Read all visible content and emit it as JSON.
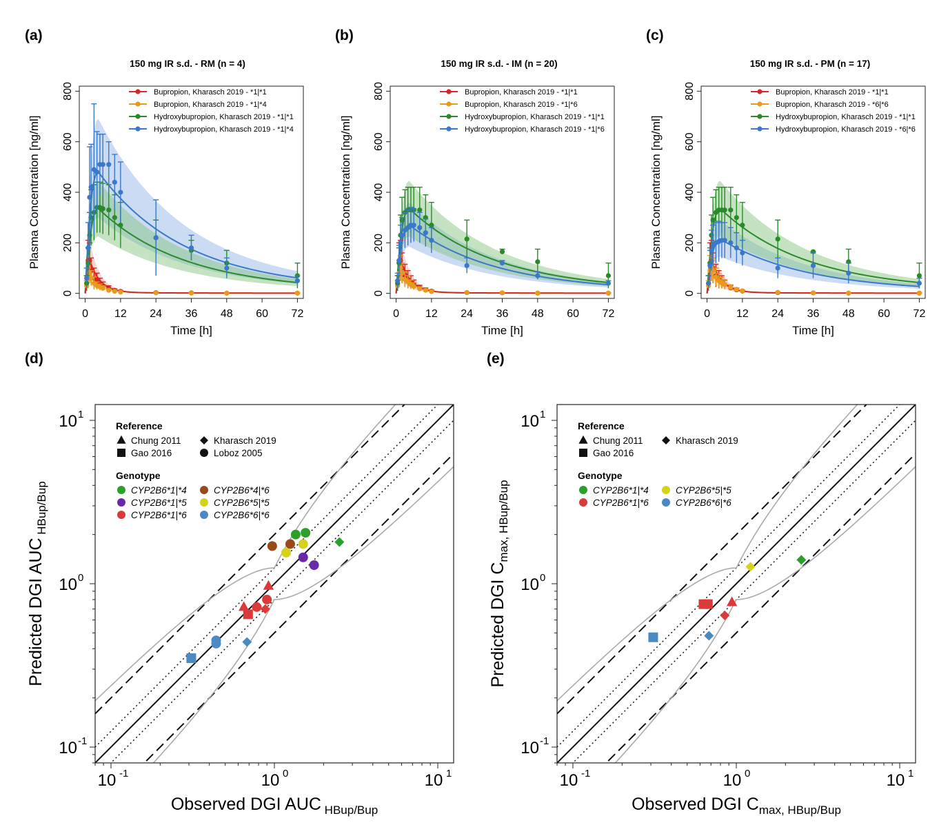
{
  "colors": {
    "bup_ref": "#d62728",
    "bup_var": "#e89a1c",
    "hbup_ref": "#2a8a2a",
    "hbup_var": "#3a78c9",
    "band_green": "#7fc27a",
    "band_blue": "#8fb0e6",
    "g14": "#2aa02a",
    "g15": "#6a2aa8",
    "g16": "#dc3a3a",
    "g46": "#9a4a1a",
    "g55": "#d4d21a",
    "g66": "#4a8ac4"
  },
  "chart_data": [
    {
      "id": "a",
      "type": "line",
      "panel_label": "(a)",
      "title": "150 mg IR s.d. - RM (n = 4)",
      "xlabel": "Time [h]",
      "ylabel": "Plasma Concentration [ng/ml]",
      "xlim": [
        -2,
        74
      ],
      "ylim": [
        -20,
        820
      ],
      "xticks": [
        0,
        12,
        24,
        36,
        48,
        60,
        72
      ],
      "yticks": [
        0,
        200,
        400,
        600,
        800
      ],
      "legend": [
        "Bupropion, Kharasch 2019 - *1|*1",
        "Bupropion, Kharasch 2019 - *1|*4",
        "Hydroxybupropion, Kharasch 2019 - *1|*1",
        "Hydroxybupropion, Kharasch 2019 - *1|*4"
      ],
      "hbup_ref": {
        "peak": 335,
        "band_hi": 445,
        "band_lo": 225
      },
      "hbup_var": {
        "peak": 480,
        "band_hi": 690,
        "band_lo": 300
      },
      "obs_hbup_ref": {
        "t": [
          0.5,
          1,
          1.5,
          2,
          3,
          4,
          5,
          6,
          8,
          10,
          12,
          24,
          36,
          48,
          72
        ],
        "y": [
          40,
          120,
          230,
          300,
          320,
          340,
          340,
          335,
          330,
          300,
          270,
          220,
          170,
          120,
          70
        ],
        "sd": [
          30,
          60,
          90,
          110,
          110,
          100,
          100,
          100,
          100,
          90,
          90,
          70,
          40,
          50,
          50
        ]
      },
      "obs_hbup_var": {
        "t": [
          0.5,
          1,
          1.5,
          2,
          3,
          4,
          5,
          6,
          8,
          10,
          12,
          24,
          36,
          48,
          72
        ],
        "y": [
          60,
          180,
          380,
          420,
          490,
          480,
          510,
          510,
          510,
          440,
          400,
          220,
          180,
          100,
          50
        ],
        "sd": [
          40,
          100,
          200,
          170,
          260,
          160,
          120,
          120,
          90,
          110,
          120,
          150,
          50,
          40,
          20
        ]
      },
      "obs_bup_ref": {
        "t": [
          0.5,
          1,
          1.5,
          2,
          3,
          4,
          5,
          6,
          8,
          10,
          12,
          24,
          36,
          48,
          72
        ],
        "y": [
          40,
          130,
          130,
          90,
          60,
          50,
          40,
          30,
          20,
          12,
          8,
          3,
          2,
          1,
          1
        ],
        "sd": [
          30,
          80,
          70,
          50,
          40,
          30,
          20,
          15,
          10,
          6,
          4,
          2,
          1,
          1,
          1
        ]
      },
      "obs_bup_var": {
        "t": [
          0.5,
          1,
          1.5,
          2,
          3,
          4,
          5,
          6,
          8,
          10,
          12,
          24,
          36,
          48,
          72
        ],
        "y": [
          30,
          60,
          80,
          60,
          40,
          30,
          25,
          20,
          12,
          8,
          5,
          2,
          1,
          1,
          1
        ],
        "sd": [
          20,
          40,
          40,
          30,
          25,
          15,
          12,
          10,
          6,
          4,
          3,
          1,
          1,
          1,
          1
        ]
      }
    },
    {
      "id": "b",
      "type": "line",
      "panel_label": "(b)",
      "title": "150 mg IR s.d. - IM (n = 20)",
      "xlabel": "Time [h]",
      "ylabel": "Plasma Concentration [ng/ml]",
      "xlim": [
        -2,
        74
      ],
      "ylim": [
        -20,
        820
      ],
      "xticks": [
        0,
        12,
        24,
        36,
        48,
        60,
        72
      ],
      "yticks": [
        0,
        200,
        400,
        600,
        800
      ],
      "legend": [
        "Bupropion, Kharasch 2019 - *1|*1",
        "Bupropion, Kharasch 2019 - *1|*6",
        "Hydroxybupropion, Kharasch 2019 - *1|*1",
        "Hydroxybupropion, Kharasch 2019 - *1|*6"
      ],
      "hbup_ref": {
        "peak": 335,
        "band_hi": 445,
        "band_lo": 225
      },
      "hbup_var": {
        "peak": 270,
        "band_hi": 360,
        "band_lo": 185
      },
      "obs_hbup_ref": {
        "t": [
          0.5,
          1,
          1.5,
          2,
          3,
          4,
          5,
          6,
          8,
          10,
          12,
          24,
          36,
          48,
          72
        ],
        "y": [
          40,
          120,
          230,
          290,
          320,
          330,
          330,
          330,
          330,
          300,
          270,
          215,
          165,
          125,
          70
        ],
        "sd": [
          30,
          60,
          80,
          90,
          90,
          90,
          90,
          90,
          90,
          90,
          90,
          75,
          10,
          50,
          50
        ]
      },
      "obs_hbup_var": {
        "t": [
          0.5,
          1,
          1.5,
          2,
          3,
          4,
          5,
          6,
          8,
          10,
          12,
          24,
          36,
          48,
          72
        ],
        "y": [
          50,
          130,
          200,
          230,
          250,
          260,
          270,
          270,
          260,
          240,
          210,
          110,
          120,
          70,
          40
        ],
        "sd": [
          30,
          60,
          70,
          70,
          70,
          70,
          70,
          65,
          60,
          55,
          50,
          30,
          10,
          15,
          10
        ]
      },
      "obs_bup_ref": {
        "t": [
          0.5,
          1,
          1.5,
          2,
          3,
          4,
          5,
          6,
          8,
          10,
          12,
          24,
          36,
          48,
          72
        ],
        "y": [
          40,
          120,
          130,
          100,
          70,
          55,
          45,
          35,
          22,
          14,
          9,
          3,
          2,
          1,
          1
        ],
        "sd": [
          30,
          80,
          80,
          60,
          45,
          35,
          25,
          18,
          10,
          7,
          4,
          2,
          1,
          1,
          1
        ]
      },
      "obs_bup_var": {
        "t": [
          0.5,
          1,
          1.5,
          2,
          3,
          4,
          5,
          6,
          8,
          10,
          12,
          24,
          36,
          48,
          72
        ],
        "y": [
          30,
          80,
          100,
          80,
          55,
          45,
          35,
          28,
          18,
          12,
          7,
          3,
          2,
          1,
          1
        ],
        "sd": [
          20,
          50,
          50,
          40,
          30,
          25,
          18,
          14,
          8,
          5,
          3,
          1,
          1,
          1,
          1
        ]
      }
    },
    {
      "id": "c",
      "type": "line",
      "panel_label": "(c)",
      "title": "150 mg IR s.d. - PM (n = 17)",
      "xlabel": "Time [h]",
      "ylabel": "Plasma Concentration [ng/ml]",
      "xlim": [
        -2,
        74
      ],
      "ylim": [
        -20,
        820
      ],
      "xticks": [
        0,
        12,
        24,
        36,
        48,
        60,
        72
      ],
      "yticks": [
        0,
        200,
        400,
        600,
        800
      ],
      "legend": [
        "Bupropion, Kharasch 2019 - *1|*1",
        "Bupropion, Kharasch 2019 - *6|*6",
        "Hydroxybupropion, Kharasch 2019 - *1|*1",
        "Hydroxybupropion, Kharasch 2019 - *6|*6"
      ],
      "hbup_ref": {
        "peak": 335,
        "band_hi": 445,
        "band_lo": 225
      },
      "hbup_var": {
        "peak": 215,
        "band_hi": 290,
        "band_lo": 145
      },
      "obs_hbup_ref": {
        "t": [
          0.5,
          1,
          1.5,
          2,
          3,
          4,
          5,
          6,
          8,
          10,
          12,
          24,
          36,
          48,
          72
        ],
        "y": [
          40,
          120,
          230,
          290,
          320,
          330,
          330,
          330,
          330,
          300,
          270,
          215,
          165,
          125,
          70
        ],
        "sd": [
          30,
          60,
          80,
          90,
          90,
          90,
          90,
          90,
          90,
          90,
          90,
          75,
          0,
          50,
          50
        ]
      },
      "obs_hbup_var": {
        "t": [
          0.5,
          1,
          1.5,
          2,
          3,
          4,
          5,
          6,
          8,
          10,
          12,
          24,
          36,
          48,
          72
        ],
        "y": [
          40,
          110,
          170,
          190,
          200,
          205,
          210,
          210,
          200,
          180,
          160,
          100,
          110,
          80,
          40
        ],
        "sd": [
          30,
          60,
          80,
          80,
          80,
          80,
          70,
          70,
          60,
          60,
          50,
          40,
          50,
          40,
          20
        ]
      },
      "obs_bup_ref": {
        "t": [
          0.5,
          1,
          1.5,
          2,
          3,
          4,
          5,
          6,
          8,
          10,
          12,
          24,
          36,
          48,
          72
        ],
        "y": [
          40,
          120,
          130,
          100,
          70,
          55,
          45,
          35,
          22,
          14,
          9,
          3,
          2,
          1,
          1
        ],
        "sd": [
          30,
          80,
          80,
          60,
          45,
          35,
          25,
          18,
          10,
          7,
          4,
          2,
          1,
          1,
          1
        ]
      },
      "obs_bup_var": {
        "t": [
          0.5,
          1,
          1.5,
          2,
          3,
          4,
          5,
          6,
          8,
          10,
          12,
          24,
          36,
          48,
          72
        ],
        "y": [
          30,
          90,
          110,
          90,
          65,
          50,
          42,
          35,
          24,
          16,
          10,
          4,
          2,
          1,
          1
        ],
        "sd": [
          20,
          60,
          60,
          50,
          35,
          28,
          20,
          16,
          10,
          6,
          4,
          2,
          1,
          1,
          1
        ]
      }
    },
    {
      "id": "d",
      "type": "scatter",
      "panel_label": "(d)",
      "xlabel_main": "Observed DGI AUC",
      "xlabel_sub": "HBup/Bup",
      "ylabel_main": "Predicted DGI AUC",
      "ylabel_sub": "HBup/Bup",
      "scale": "log",
      "xlim": [
        0.08,
        12.5
      ],
      "ylim": [
        0.08,
        12.5
      ],
      "ticks": [
        0.1,
        1,
        10
      ],
      "tick_labels": [
        [
          "10",
          "-1"
        ],
        [
          "10",
          "0"
        ],
        [
          "10",
          "1"
        ]
      ],
      "legend_reference_title": "Reference",
      "legend_genotype_title": "Genotype",
      "references": [
        {
          "shape": "triangle",
          "label": "Chung 2011"
        },
        {
          "shape": "diamond",
          "label": "Kharasch 2019"
        },
        {
          "shape": "square",
          "label": "Gao 2016"
        },
        {
          "shape": "circle",
          "label": "Loboz 2005"
        }
      ],
      "genotypes": [
        {
          "key": "g14",
          "label": "CYP2B6*1|*4"
        },
        {
          "key": "g46",
          "label": "CYP2B6*4|*6"
        },
        {
          "key": "g15",
          "label": "CYP2B6*1|*5"
        },
        {
          "key": "g55",
          "label": "CYP2B6*5|*5"
        },
        {
          "key": "g16",
          "label": "CYP2B6*1|*6"
        },
        {
          "key": "g66",
          "label": "CYP2B6*6|*6"
        }
      ],
      "points": [
        {
          "x": 1.35,
          "y": 2.0,
          "g": "g14",
          "s": "circle"
        },
        {
          "x": 1.55,
          "y": 2.05,
          "g": "g14",
          "s": "circle"
        },
        {
          "x": 2.5,
          "y": 1.8,
          "g": "g14",
          "s": "diamond"
        },
        {
          "x": 0.97,
          "y": 1.7,
          "g": "g46",
          "s": "circle"
        },
        {
          "x": 1.25,
          "y": 1.75,
          "g": "g46",
          "s": "circle"
        },
        {
          "x": 1.5,
          "y": 1.45,
          "g": "g15",
          "s": "circle"
        },
        {
          "x": 1.75,
          "y": 1.3,
          "g": "g15",
          "s": "circle"
        },
        {
          "x": 1.5,
          "y": 1.75,
          "g": "g55",
          "s": "circle"
        },
        {
          "x": 1.18,
          "y": 1.55,
          "g": "g55",
          "s": "circle"
        },
        {
          "x": 0.92,
          "y": 0.97,
          "g": "g16",
          "s": "triangle"
        },
        {
          "x": 0.65,
          "y": 0.72,
          "g": "g16",
          "s": "triangle"
        },
        {
          "x": 0.69,
          "y": 0.65,
          "g": "g16",
          "s": "square"
        },
        {
          "x": 0.78,
          "y": 0.72,
          "g": "g16",
          "s": "circle"
        },
        {
          "x": 0.9,
          "y": 0.8,
          "g": "g16",
          "s": "circle"
        },
        {
          "x": 0.88,
          "y": 0.7,
          "g": "g16",
          "s": "diamond"
        },
        {
          "x": 0.31,
          "y": 0.35,
          "g": "g66",
          "s": "square"
        },
        {
          "x": 0.44,
          "y": 0.43,
          "g": "g66",
          "s": "circle"
        },
        {
          "x": 0.44,
          "y": 0.45,
          "g": "g66",
          "s": "circle"
        },
        {
          "x": 0.68,
          "y": 0.44,
          "g": "g66",
          "s": "diamond"
        }
      ]
    },
    {
      "id": "e",
      "type": "scatter",
      "panel_label": "(e)",
      "xlabel_main": "Observed DGI C",
      "xlabel_max": "max",
      "xlabel_sub": ", HBup/Bup",
      "ylabel_main": "Predicted DGI C",
      "ylabel_max": "max",
      "ylabel_sub": ", HBup/Bup",
      "scale": "log",
      "xlim": [
        0.08,
        12.5
      ],
      "ylim": [
        0.08,
        12.5
      ],
      "ticks": [
        0.1,
        1,
        10
      ],
      "tick_labels": [
        [
          "10",
          "-1"
        ],
        [
          "10",
          "0"
        ],
        [
          "10",
          "1"
        ]
      ],
      "legend_reference_title": "Reference",
      "legend_genotype_title": "Genotype",
      "references": [
        {
          "shape": "triangle",
          "label": "Chung 2011"
        },
        {
          "shape": "diamond",
          "label": "Kharasch 2019"
        },
        {
          "shape": "square",
          "label": "Gao 2016"
        }
      ],
      "genotypes": [
        {
          "key": "g14",
          "label": "CYP2B6*1|*4"
        },
        {
          "key": "g55",
          "label": "CYP2B6*5|*5"
        },
        {
          "key": "g16",
          "label": "CYP2B6*1|*6"
        },
        {
          "key": "g66",
          "label": "CYP2B6*6|*6"
        }
      ],
      "points": [
        {
          "x": 2.5,
          "y": 1.4,
          "g": "g14",
          "s": "diamond"
        },
        {
          "x": 1.22,
          "y": 1.27,
          "g": "g55",
          "s": "diamond"
        },
        {
          "x": 0.63,
          "y": 0.75,
          "g": "g16",
          "s": "square"
        },
        {
          "x": 0.67,
          "y": 0.75,
          "g": "g16",
          "s": "square"
        },
        {
          "x": 0.94,
          "y": 0.77,
          "g": "g16",
          "s": "triangle"
        },
        {
          "x": 0.85,
          "y": 0.64,
          "g": "g16",
          "s": "diamond"
        },
        {
          "x": 0.31,
          "y": 0.47,
          "g": "g66",
          "s": "square"
        },
        {
          "x": 0.68,
          "y": 0.48,
          "g": "g66",
          "s": "diamond"
        }
      ]
    }
  ]
}
